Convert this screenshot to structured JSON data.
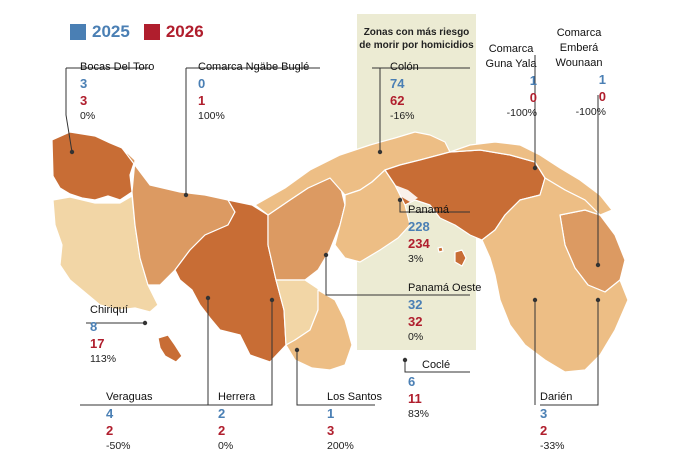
{
  "legend": [
    {
      "label": "2025",
      "color": "#4a7fb4"
    },
    {
      "label": "2026",
      "color": "#b01e2d"
    }
  ],
  "highlight_title": "Zonas con más riesgo de morir por homicidios",
  "colors": {
    "very_light": "#f2d6a6",
    "light": "#edbe85",
    "medium": "#dc9a62",
    "dark": "#c86d35",
    "darkest": "#b2501c",
    "border": "#ffffff",
    "leader": "#333333"
  },
  "regions": [
    {
      "name": "Bocas Del Toro",
      "v2025": "3",
      "v2026": "3",
      "change": "0%"
    },
    {
      "name": "Comarca Ngäbe Buglé",
      "v2025": "0",
      "v2026": "1",
      "change": "100%"
    },
    {
      "name": "Colón",
      "v2025": "74",
      "v2026": "62",
      "change": "-16%"
    },
    {
      "name": "Comarca Guna Yala",
      "v2025": "1",
      "v2026": "0",
      "change": "-100%"
    },
    {
      "name": "Comarca Emberá Wounaan",
      "v2025": "1",
      "v2026": "0",
      "change": "-100%"
    },
    {
      "name": "Panamá",
      "v2025": "228",
      "v2026": "234",
      "change": "3%"
    },
    {
      "name": "Panamá Oeste",
      "v2025": "32",
      "v2026": "32",
      "change": "0%"
    },
    {
      "name": "Chiriquí",
      "v2025": "8",
      "v2026": "17",
      "change": "113%"
    },
    {
      "name": "Coclé",
      "v2025": "6",
      "v2026": "11",
      "change": "83%"
    },
    {
      "name": "Veraguas",
      "v2025": "4",
      "v2026": "2",
      "change": "-50%"
    },
    {
      "name": "Herrera",
      "v2025": "2",
      "v2026": "2",
      "change": "0%"
    },
    {
      "name": "Los Santos",
      "v2025": "1",
      "v2026": "3",
      "change": "200%"
    },
    {
      "name": "Darién",
      "v2025": "3",
      "v2026": "2",
      "change": "-33%"
    }
  ]
}
